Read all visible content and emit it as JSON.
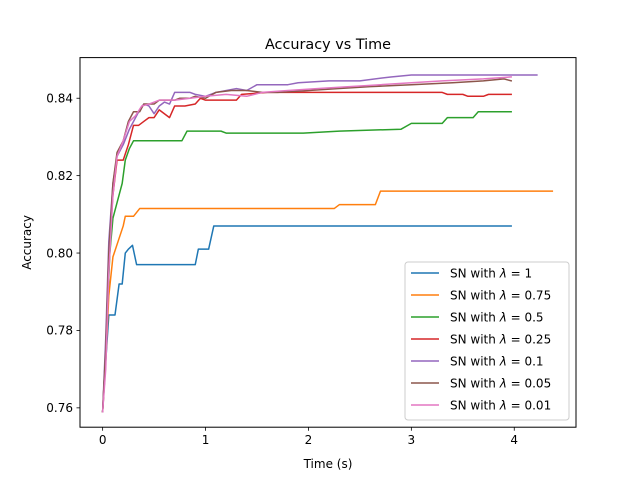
{
  "chart_data": {
    "type": "line",
    "title": "Accuracy vs Time",
    "xlabel": "Time (s)",
    "ylabel": "Accuracy",
    "xlim": [
      -0.22,
      4.6
    ],
    "ylim": [
      0.755,
      0.8505
    ],
    "xticks": [
      0,
      1,
      2,
      3,
      4
    ],
    "xtick_labels": [
      "0",
      "1",
      "2",
      "3",
      "4"
    ],
    "yticks": [
      0.76,
      0.78,
      0.8,
      0.82,
      0.84
    ],
    "ytick_labels": [
      "0.76",
      "0.78",
      "0.80",
      "0.82",
      "0.84"
    ],
    "grid": false,
    "legend_position": "lower-right",
    "series": [
      {
        "name": "SN with λ = 1",
        "legend_prefix": "SN with ",
        "legend_symbol": "λ",
        "legend_suffix": " = 1",
        "color": "#1f77b4",
        "points": [
          [
            0,
            0.759
          ],
          [
            0.03,
            0.772
          ],
          [
            0.06,
            0.784
          ],
          [
            0.12,
            0.784
          ],
          [
            0.16,
            0.792
          ],
          [
            0.19,
            0.792
          ],
          [
            0.22,
            0.8
          ],
          [
            0.25,
            0.801
          ],
          [
            0.29,
            0.802
          ],
          [
            0.33,
            0.797
          ],
          [
            0.5,
            0.797
          ],
          [
            0.7,
            0.797
          ],
          [
            0.9,
            0.797
          ],
          [
            0.93,
            0.801
          ],
          [
            1.03,
            0.801
          ],
          [
            1.08,
            0.807
          ],
          [
            1.5,
            0.807
          ],
          [
            2.5,
            0.807
          ],
          [
            3.5,
            0.807
          ],
          [
            3.97,
            0.807
          ]
        ]
      },
      {
        "name": "SN with λ = 0.75",
        "legend_prefix": "SN with ",
        "legend_symbol": "λ",
        "legend_suffix": " = 0.75",
        "color": "#ff7f0e",
        "points": [
          [
            0,
            0.759
          ],
          [
            0.03,
            0.772
          ],
          [
            0.06,
            0.789
          ],
          [
            0.1,
            0.799
          ],
          [
            0.15,
            0.803
          ],
          [
            0.2,
            0.807
          ],
          [
            0.22,
            0.8095
          ],
          [
            0.3,
            0.8095
          ],
          [
            0.36,
            0.8115
          ],
          [
            0.8,
            0.8115
          ],
          [
            1.5,
            0.8115
          ],
          [
            2.25,
            0.8115
          ],
          [
            2.3,
            0.8125
          ],
          [
            2.65,
            0.8125
          ],
          [
            2.7,
            0.816
          ],
          [
            3.5,
            0.816
          ],
          [
            4.37,
            0.816
          ]
        ]
      },
      {
        "name": "SN with λ = 0.5",
        "legend_prefix": "SN with ",
        "legend_symbol": "λ",
        "legend_suffix": " = 0.5",
        "color": "#2ca02c",
        "points": [
          [
            0,
            0.759
          ],
          [
            0.03,
            0.775
          ],
          [
            0.07,
            0.8
          ],
          [
            0.1,
            0.809
          ],
          [
            0.15,
            0.814
          ],
          [
            0.19,
            0.818
          ],
          [
            0.22,
            0.824
          ],
          [
            0.26,
            0.827
          ],
          [
            0.3,
            0.829
          ],
          [
            0.5,
            0.829
          ],
          [
            0.77,
            0.829
          ],
          [
            0.82,
            0.8315
          ],
          [
            1.15,
            0.8315
          ],
          [
            1.2,
            0.831
          ],
          [
            1.95,
            0.831
          ],
          [
            2.3,
            0.8315
          ],
          [
            2.9,
            0.832
          ],
          [
            3.0,
            0.8335
          ],
          [
            3.3,
            0.8335
          ],
          [
            3.35,
            0.835
          ],
          [
            3.6,
            0.835
          ],
          [
            3.65,
            0.8365
          ],
          [
            3.97,
            0.8365
          ]
        ]
      },
      {
        "name": "SN with λ = 0.25",
        "legend_prefix": "SN with ",
        "legend_symbol": "λ",
        "legend_suffix": " = 0.25",
        "color": "#d62728",
        "points": [
          [
            0,
            0.759
          ],
          [
            0.03,
            0.775
          ],
          [
            0.06,
            0.8
          ],
          [
            0.1,
            0.815
          ],
          [
            0.14,
            0.824
          ],
          [
            0.2,
            0.824
          ],
          [
            0.25,
            0.828
          ],
          [
            0.3,
            0.833
          ],
          [
            0.35,
            0.833
          ],
          [
            0.4,
            0.834
          ],
          [
            0.45,
            0.835
          ],
          [
            0.5,
            0.835
          ],
          [
            0.55,
            0.837
          ],
          [
            0.6,
            0.836
          ],
          [
            0.65,
            0.835
          ],
          [
            0.7,
            0.838
          ],
          [
            0.8,
            0.838
          ],
          [
            0.9,
            0.8385
          ],
          [
            0.95,
            0.84
          ],
          [
            1.0,
            0.8395
          ],
          [
            1.3,
            0.8395
          ],
          [
            1.35,
            0.841
          ],
          [
            1.6,
            0.8415
          ],
          [
            1.9,
            0.8415
          ],
          [
            2.0,
            0.8415
          ],
          [
            3.0,
            0.8415
          ],
          [
            3.3,
            0.8415
          ],
          [
            3.35,
            0.841
          ],
          [
            3.5,
            0.841
          ],
          [
            3.55,
            0.8405
          ],
          [
            3.7,
            0.8405
          ],
          [
            3.75,
            0.841
          ],
          [
            3.97,
            0.841
          ]
        ]
      },
      {
        "name": "SN with λ = 0.1",
        "legend_prefix": "SN with ",
        "legend_symbol": "λ",
        "legend_suffix": " = 0.1",
        "color": "#9467bd",
        "points": [
          [
            0,
            0.759
          ],
          [
            0.03,
            0.778
          ],
          [
            0.06,
            0.803
          ],
          [
            0.1,
            0.818
          ],
          [
            0.14,
            0.825
          ],
          [
            0.2,
            0.828
          ],
          [
            0.26,
            0.832
          ],
          [
            0.32,
            0.835
          ],
          [
            0.36,
            0.837
          ],
          [
            0.4,
            0.8385
          ],
          [
            0.45,
            0.838
          ],
          [
            0.5,
            0.836
          ],
          [
            0.55,
            0.838
          ],
          [
            0.6,
            0.839
          ],
          [
            0.65,
            0.8385
          ],
          [
            0.7,
            0.8415
          ],
          [
            0.85,
            0.8415
          ],
          [
            0.9,
            0.841
          ],
          [
            1.0,
            0.8405
          ],
          [
            1.1,
            0.8415
          ],
          [
            1.3,
            0.8425
          ],
          [
            1.4,
            0.842
          ],
          [
            1.5,
            0.8435
          ],
          [
            1.8,
            0.8435
          ],
          [
            1.9,
            0.844
          ],
          [
            2.2,
            0.8445
          ],
          [
            2.5,
            0.8445
          ],
          [
            2.8,
            0.8455
          ],
          [
            3.0,
            0.846
          ],
          [
            3.4,
            0.846
          ],
          [
            3.7,
            0.846
          ],
          [
            4.0,
            0.846
          ],
          [
            4.22,
            0.846
          ]
        ]
      },
      {
        "name": "SN with λ = 0.05",
        "legend_prefix": "SN with ",
        "legend_symbol": "λ",
        "legend_suffix": " = 0.05",
        "color": "#8c564b",
        "points": [
          [
            0,
            0.759
          ],
          [
            0.03,
            0.775
          ],
          [
            0.06,
            0.8
          ],
          [
            0.1,
            0.818
          ],
          [
            0.14,
            0.826
          ],
          [
            0.2,
            0.829
          ],
          [
            0.25,
            0.834
          ],
          [
            0.3,
            0.8365
          ],
          [
            0.36,
            0.8365
          ],
          [
            0.4,
            0.8385
          ],
          [
            0.5,
            0.8385
          ],
          [
            0.55,
            0.8395
          ],
          [
            0.7,
            0.8395
          ],
          [
            0.75,
            0.84
          ],
          [
            0.85,
            0.84
          ],
          [
            0.9,
            0.8405
          ],
          [
            1.0,
            0.84
          ],
          [
            1.1,
            0.8415
          ],
          [
            1.25,
            0.842
          ],
          [
            1.4,
            0.842
          ],
          [
            1.55,
            0.8415
          ],
          [
            1.7,
            0.8415
          ],
          [
            2.0,
            0.842
          ],
          [
            2.3,
            0.8425
          ],
          [
            2.6,
            0.843
          ],
          [
            3.0,
            0.8435
          ],
          [
            3.4,
            0.844
          ],
          [
            3.7,
            0.8445
          ],
          [
            3.9,
            0.845
          ],
          [
            3.97,
            0.8445
          ]
        ]
      },
      {
        "name": "SN with λ = 0.01",
        "legend_prefix": "SN with ",
        "legend_symbol": "λ",
        "legend_suffix": " = 0.01",
        "color": "#e377c2",
        "points": [
          [
            0,
            0.759
          ],
          [
            0.03,
            0.77
          ],
          [
            0.06,
            0.795
          ],
          [
            0.1,
            0.815
          ],
          [
            0.14,
            0.825
          ],
          [
            0.2,
            0.829
          ],
          [
            0.26,
            0.834
          ],
          [
            0.32,
            0.8355
          ],
          [
            0.38,
            0.838
          ],
          [
            0.45,
            0.8385
          ],
          [
            0.55,
            0.8395
          ],
          [
            0.7,
            0.8395
          ],
          [
            0.85,
            0.84
          ],
          [
            1.0,
            0.8405
          ],
          [
            1.2,
            0.841
          ],
          [
            1.4,
            0.8405
          ],
          [
            1.55,
            0.8415
          ],
          [
            1.8,
            0.842
          ],
          [
            2.1,
            0.8425
          ],
          [
            2.4,
            0.843
          ],
          [
            2.7,
            0.8435
          ],
          [
            3.0,
            0.844
          ],
          [
            3.3,
            0.8445
          ],
          [
            3.7,
            0.845
          ],
          [
            3.97,
            0.8455
          ]
        ]
      }
    ]
  }
}
